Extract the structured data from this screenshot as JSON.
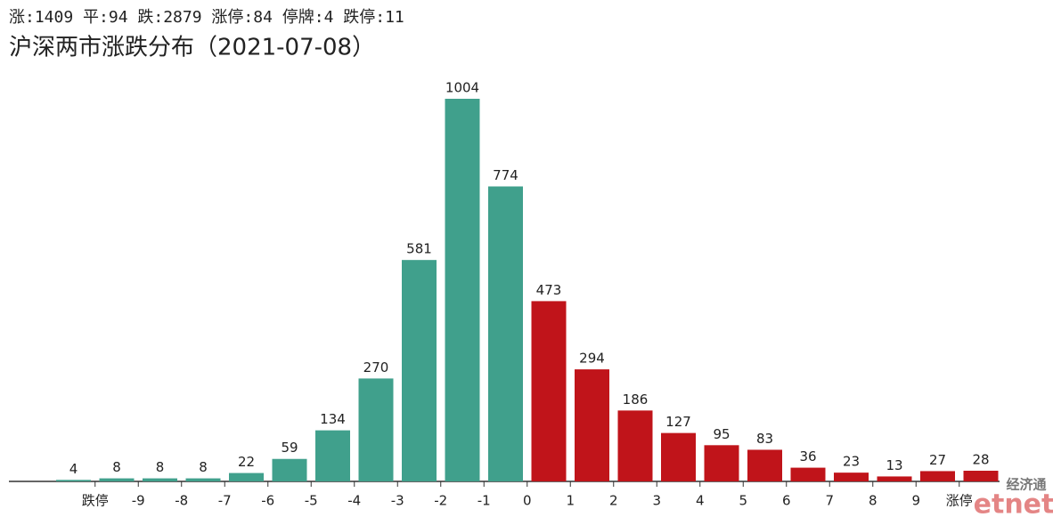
{
  "chart_data": {
    "type": "bar",
    "summary": "涨:1409 平:94 跌:2879 涨停:84 停牌:4 跌停:11",
    "title": "沪深两市涨跌分布（2021-07-08）",
    "values": [
      4,
      8,
      8,
      8,
      22,
      59,
      134,
      270,
      581,
      1004,
      774,
      473,
      294,
      186,
      127,
      95,
      83,
      36,
      23,
      13,
      27,
      28
    ],
    "colors": [
      "#40a08c",
      "#40a08c",
      "#40a08c",
      "#40a08c",
      "#40a08c",
      "#40a08c",
      "#40a08c",
      "#40a08c",
      "#40a08c",
      "#40a08c",
      "#40a08c",
      "#c0141a",
      "#c0141a",
      "#c0141a",
      "#c0141a",
      "#c0141a",
      "#c0141a",
      "#c0141a",
      "#c0141a",
      "#c0141a",
      "#c0141a",
      "#c0141a"
    ],
    "xtick_labels": [
      "跌停",
      "-9",
      "-8",
      "-7",
      "-6",
      "-5",
      "-4",
      "-3",
      "-2",
      "-1",
      "0",
      "1",
      "2",
      "3",
      "4",
      "5",
      "6",
      "7",
      "8",
      "9",
      "涨停"
    ],
    "watermark": {
      "top": "经济通",
      "bottom": "etnet"
    }
  }
}
